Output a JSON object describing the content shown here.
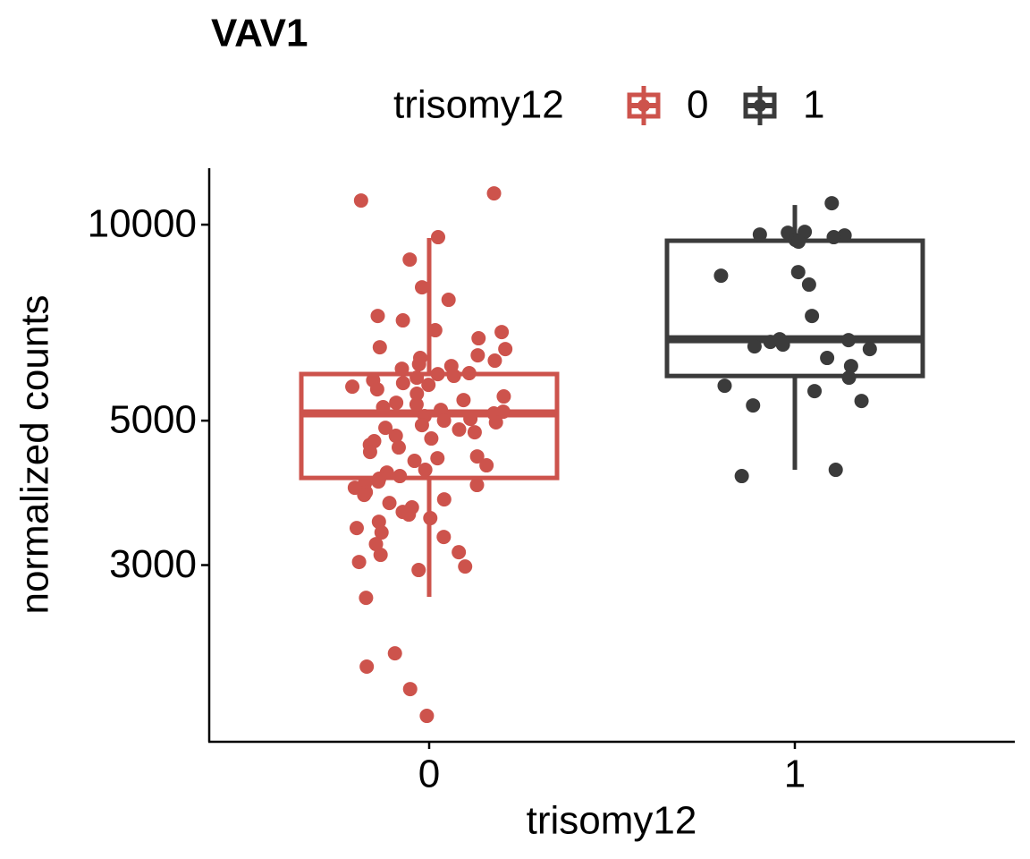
{
  "chart_data": {
    "type": "box",
    "title": "VAV1",
    "legend_title": "trisomy12",
    "x_label": "trisomy12",
    "y_label": "normalized counts",
    "categories": [
      "0",
      "1"
    ],
    "log_scale": true,
    "ylim": [
      1611,
      12209
    ],
    "yticks": [
      3000,
      5000,
      10000
    ],
    "series": [
      {
        "name": "0",
        "color": "#cd534c",
        "box": {
          "whisker_low": 2681,
          "q1": 4083,
          "median": 5129,
          "q3": 5896,
          "whisker_high": 9537
        },
        "points": [
          11171,
          10892,
          9567,
          8839,
          8013,
          7666,
          7241,
          7128,
          6884,
          6840,
          6691,
          6482,
          6441,
          6300,
          6241,
          6182,
          6104,
          6065,
          6008,
          5914,
          5895,
          5858,
          5821,
          5766,
          5711,
          5675,
          5639,
          5586,
          5499,
          5447,
          5378,
          5327,
          5294,
          5244,
          5194,
          5161,
          5129,
          5081,
          5032,
          5001,
          4970,
          4922,
          4875,
          4845,
          4799,
          4739,
          4694,
          4650,
          4591,
          4548,
          4476,
          4406,
          4378,
          4337,
          4269,
          4202,
          4162,
          4110,
          4071,
          4032,
          4007,
          3982,
          3944,
          3882,
          3845,
          3785,
          3737,
          3679,
          3621,
          3587,
          3542,
          3497,
          3420,
          3367,
          3314,
          3231,
          3140,
          3111,
          3033,
          2985,
          2948,
          2672,
          2196,
          2095,
          1935,
          1760
        ]
      },
      {
        "name": "1",
        "color": "#3b3b3b",
        "box": {
          "whisker_low": 4202,
          "q1": 5856,
          "median": 6668,
          "q3": 9447,
          "whisker_high": 10720
        },
        "points": [
          10789,
          9750,
          9719,
          9658,
          9627,
          9567,
          9476,
          9416,
          8456,
          8349,
          8090,
          7241,
          6669,
          6648,
          6606,
          6544,
          6502,
          6441,
          6241,
          6065,
          5821,
          5657,
          5551,
          5361,
          5277,
          4202,
          4110
        ]
      }
    ]
  }
}
